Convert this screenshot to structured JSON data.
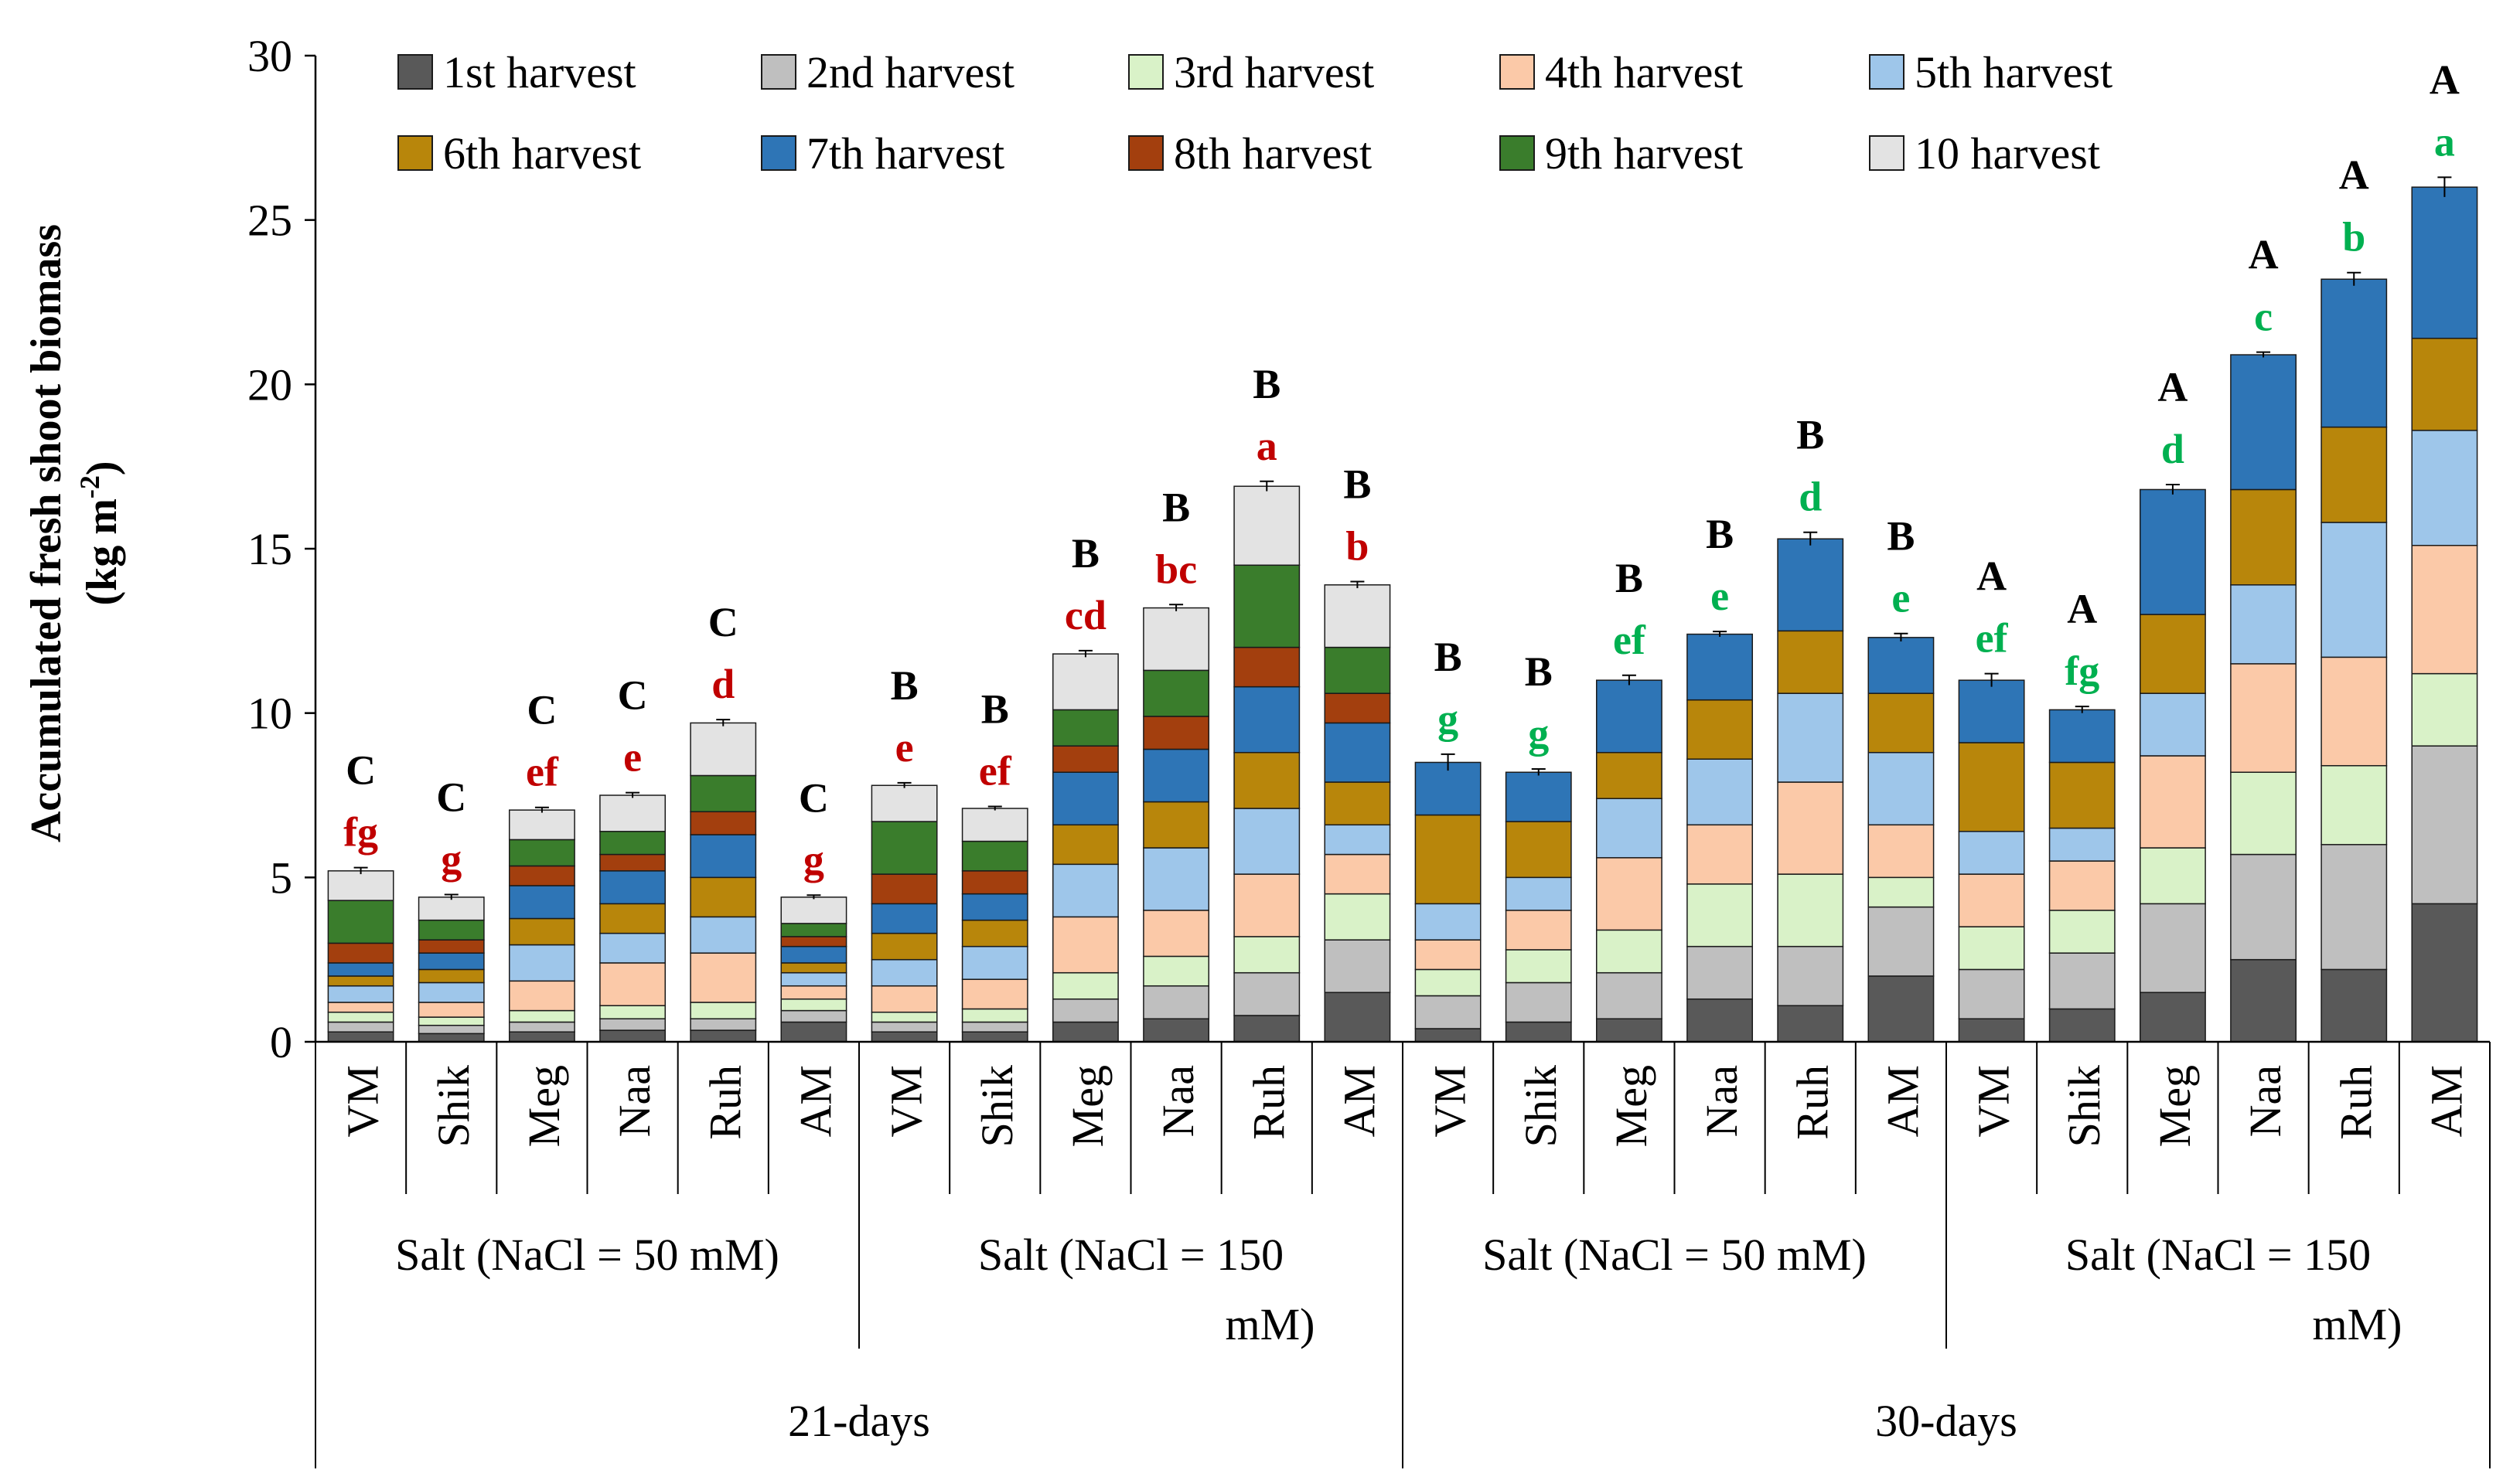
{
  "chart_data": {
    "type": "bar",
    "stacked": true,
    "ylabel_line1": "Accumulated  fresh shoot biomass",
    "ylabel_line2": "(kg m",
    "ylabel_sup": "-2",
    "ylabel_close": ")",
    "ylim": [
      0,
      30
    ],
    "yticks": [
      0,
      5,
      10,
      15,
      20,
      25,
      30
    ],
    "legend_position": "top",
    "categories": [
      "VM",
      "Shik",
      "Meg",
      "Naa",
      "Ruh",
      "AM",
      "VM",
      "Shik",
      "Meg",
      "Naa",
      "Ruh",
      "AM",
      "VM",
      "Shik",
      "Meg",
      "Naa",
      "Ruh",
      "AM",
      "VM",
      "Shik",
      "Meg",
      "Naa",
      "Ruh",
      "AM"
    ],
    "group_labels": [
      {
        "line1": "Salt  (NaCl = 50 mM)",
        "line2": ""
      },
      {
        "line1": "Salt  (NaCl = 150",
        "line2": "mM)"
      },
      {
        "line1": "Salt   (NaCl = 50 mM)",
        "line2": ""
      },
      {
        "line1": "Salt   (NaCl = 150",
        "line2": "mM)"
      }
    ],
    "period_labels": [
      "21-days",
      "30-days"
    ],
    "series": [
      {
        "name": "1st harvest",
        "color": "#595959",
        "values": [
          0.3,
          0.25,
          0.3,
          0.35,
          0.35,
          0.6,
          0.3,
          0.3,
          0.6,
          0.7,
          0.8,
          1.5,
          0.4,
          0.6,
          0.7,
          1.3,
          1.1,
          2.0,
          0.7,
          1.0,
          1.5,
          2.5,
          2.2,
          4.2
        ]
      },
      {
        "name": "2nd harvest",
        "color": "#bfbfbf",
        "values": [
          0.3,
          0.25,
          0.3,
          0.35,
          0.35,
          0.35,
          0.3,
          0.3,
          0.7,
          1.0,
          1.3,
          1.6,
          1.0,
          1.2,
          1.4,
          1.6,
          1.8,
          2.1,
          1.5,
          1.7,
          2.7,
          3.2,
          3.8,
          4.8
        ]
      },
      {
        "name": "3rd harvest",
        "color": "#d9f2c8",
        "values": [
          0.3,
          0.25,
          0.35,
          0.4,
          0.5,
          0.35,
          0.3,
          0.4,
          0.8,
          0.9,
          1.1,
          1.4,
          0.8,
          1.0,
          1.3,
          1.9,
          2.2,
          0.9,
          1.3,
          1.3,
          1.7,
          2.5,
          2.4,
          2.2
        ]
      },
      {
        "name": "4th harvest",
        "color": "#fbc9a8",
        "values": [
          0.3,
          0.45,
          0.9,
          1.3,
          1.5,
          0.4,
          0.8,
          0.9,
          1.7,
          1.4,
          1.9,
          1.2,
          0.9,
          1.2,
          2.2,
          1.8,
          2.8,
          1.6,
          1.6,
          1.5,
          2.8,
          3.3,
          3.3,
          3.9
        ]
      },
      {
        "name": "5th harvest",
        "color": "#9ec6ea",
        "values": [
          0.5,
          0.6,
          1.1,
          0.9,
          1.1,
          0.4,
          0.8,
          1.0,
          1.6,
          1.9,
          2.0,
          0.9,
          1.1,
          1.0,
          1.8,
          2.0,
          2.7,
          2.2,
          1.3,
          1.0,
          1.9,
          2.4,
          4.1,
          3.5
        ]
      },
      {
        "name": "6th harvest",
        "color": "#b8860b",
        "values": [
          0.3,
          0.4,
          0.8,
          0.9,
          1.2,
          0.3,
          0.8,
          0.8,
          1.2,
          1.4,
          1.7,
          1.3,
          2.7,
          1.7,
          1.4,
          1.8,
          1.9,
          1.8,
          2.7,
          2.0,
          2.4,
          2.9,
          2.9,
          2.8
        ]
      },
      {
        "name": "7th harvest",
        "color": "#2e75b6",
        "values": [
          0.4,
          0.5,
          1.0,
          1.0,
          1.3,
          0.5,
          0.9,
          0.8,
          1.6,
          1.6,
          2.0,
          1.8,
          1.6,
          1.5,
          2.2,
          2.0,
          2.8,
          1.7,
          1.9,
          1.6,
          3.8,
          4.1,
          4.5,
          4.6
        ]
      },
      {
        "name": "8th harvest",
        "color": "#a33f0e",
        "values": [
          0.6,
          0.4,
          0.6,
          0.5,
          0.7,
          0.3,
          0.9,
          0.7,
          0.8,
          1.0,
          1.2,
          0.9,
          0,
          0,
          0,
          0,
          0,
          0,
          0,
          0,
          0,
          0,
          0,
          0
        ]
      },
      {
        "name": "9th harvest",
        "color": "#3a7d2c",
        "values": [
          1.3,
          0.6,
          0.8,
          0.7,
          1.1,
          0.4,
          1.6,
          0.9,
          1.1,
          1.4,
          2.5,
          1.4,
          0,
          0,
          0,
          0,
          0,
          0,
          0,
          0,
          0,
          0,
          0,
          0
        ]
      },
      {
        "name": "10 harvest",
        "color": "#e3e3e3",
        "values": [
          0.9,
          0.7,
          0.9,
          1.1,
          1.6,
          0.8,
          1.1,
          1.0,
          1.7,
          1.9,
          2.4,
          1.9,
          0,
          0,
          0,
          0,
          0,
          0,
          0,
          0,
          0,
          0,
          0,
          0
        ]
      }
    ],
    "error_bars": [
      0.1,
      0.08,
      0.08,
      0.08,
      0.1,
      0.06,
      0.08,
      0.06,
      0.1,
      0.1,
      0.15,
      0.1,
      0.25,
      0.1,
      0.15,
      0.08,
      0.2,
      0.12,
      0.2,
      0.1,
      0.15,
      0.08,
      0.2,
      0.3
    ],
    "upper_letters": [
      "C",
      "C",
      "C",
      "C",
      "C",
      "C",
      "B",
      "B",
      "B",
      "B",
      "B",
      "B",
      "B",
      "B",
      "B",
      "B",
      "B",
      "B",
      "A",
      "A",
      "A",
      "A",
      "A",
      "A"
    ],
    "lower_letters": [
      "fg",
      "g",
      "ef",
      "e",
      "d",
      "g",
      "e",
      "ef",
      "cd",
      "bc",
      "a",
      "b",
      "g",
      "g",
      "ef",
      "e",
      "d",
      "e",
      "ef",
      "fg",
      "d",
      "c",
      "b",
      "a"
    ],
    "lower_letter_colors": [
      "#c00000",
      "#00b050"
    ]
  }
}
